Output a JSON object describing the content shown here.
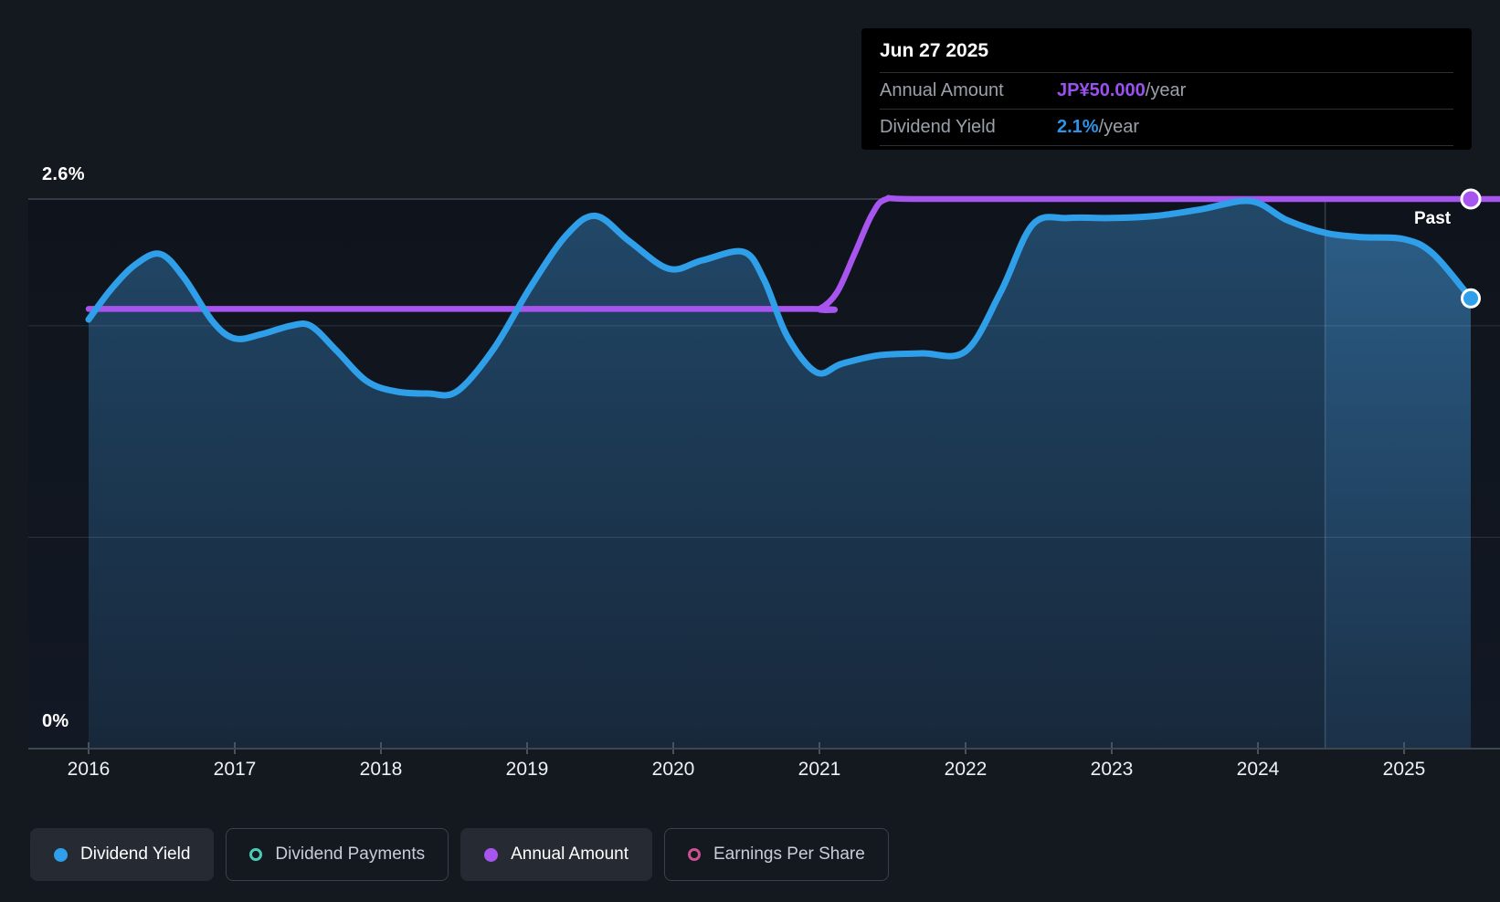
{
  "tooltip": {
    "date": "Jun 27 2025",
    "rows": [
      {
        "label": "Annual Amount",
        "value": "JP¥50.000",
        "suffix": "/year",
        "color": "#9b51f0"
      },
      {
        "label": "Dividend Yield",
        "value": "2.1%",
        "suffix": "/year",
        "color": "#2e93e8"
      }
    ]
  },
  "axes": {
    "y_top_label": "2.6%",
    "y_bottom_label": "0%",
    "x_years": [
      "2016",
      "2017",
      "2018",
      "2019",
      "2020",
      "2021",
      "2022",
      "2023",
      "2024",
      "2025"
    ]
  },
  "annotations": {
    "past_label": "Past"
  },
  "legend": {
    "items": [
      {
        "label": "Dividend Yield",
        "color": "#2e9fe8",
        "style": "filled",
        "active": true
      },
      {
        "label": "Dividend Payments",
        "color": "#4dcbb5",
        "style": "hollow",
        "active": false
      },
      {
        "label": "Annual Amount",
        "color": "#a855f0",
        "style": "filled",
        "active": true
      },
      {
        "label": "Earnings Per Share",
        "color": "#cc5190",
        "style": "hollow",
        "active": false
      }
    ]
  },
  "theme": {
    "background": "#14181f",
    "plot_background_top": "#0f141c",
    "plot_background_bottom": "#121824",
    "grid_major": "#404750",
    "grid_minor": "rgba(165,185,205,0.18)",
    "axis_line": "#3e4650",
    "tick": "#4a525b",
    "yield_line": "#2e9fe8",
    "amount_line": "#a855f0",
    "marker_ring": "#ffffff"
  },
  "chart_data": {
    "type": "area",
    "x_axis": {
      "tick_years": [
        2016,
        2017,
        2018,
        2019,
        2020,
        2021,
        2022,
        2023,
        2024,
        2025
      ],
      "range": [
        2016,
        2025.66
      ]
    },
    "y_axis": {
      "unit": "%",
      "range": [
        0,
        2.6
      ],
      "labeled_values": [
        2.6,
        0
      ],
      "gridline_values": [
        2.6,
        2.0,
        1.0,
        0
      ]
    },
    "annotations": {
      "past_label": "Past",
      "highlight_band_start_year": 2024.46,
      "today_year": 2025.456
    },
    "series": [
      {
        "name": "Dividend Yield",
        "unit": "%",
        "color": "#2e9fe8",
        "filled": true,
        "marker_year": 2025.456,
        "points": [
          [
            2016.0,
            2.03
          ],
          [
            2016.15,
            2.17
          ],
          [
            2016.32,
            2.29
          ],
          [
            2016.49,
            2.34
          ],
          [
            2016.65,
            2.23
          ],
          [
            2016.85,
            2.02
          ],
          [
            2017.0,
            1.94
          ],
          [
            2017.18,
            1.96
          ],
          [
            2017.38,
            2.0
          ],
          [
            2017.52,
            2.0
          ],
          [
            2017.7,
            1.88
          ],
          [
            2017.9,
            1.74
          ],
          [
            2018.1,
            1.69
          ],
          [
            2018.32,
            1.68
          ],
          [
            2018.52,
            1.69
          ],
          [
            2018.77,
            1.89
          ],
          [
            2019.02,
            2.18
          ],
          [
            2019.27,
            2.43
          ],
          [
            2019.47,
            2.52
          ],
          [
            2019.7,
            2.4
          ],
          [
            2019.97,
            2.27
          ],
          [
            2020.2,
            2.31
          ],
          [
            2020.48,
            2.35
          ],
          [
            2020.62,
            2.22
          ],
          [
            2020.78,
            1.95
          ],
          [
            2020.98,
            1.78
          ],
          [
            2021.15,
            1.82
          ],
          [
            2021.4,
            1.86
          ],
          [
            2021.7,
            1.87
          ],
          [
            2022.0,
            1.88
          ],
          [
            2022.24,
            2.16
          ],
          [
            2022.46,
            2.48
          ],
          [
            2022.7,
            2.51
          ],
          [
            2023.0,
            2.51
          ],
          [
            2023.3,
            2.52
          ],
          [
            2023.6,
            2.55
          ],
          [
            2023.95,
            2.59
          ],
          [
            2024.2,
            2.5
          ],
          [
            2024.46,
            2.44
          ],
          [
            2024.7,
            2.42
          ],
          [
            2025.0,
            2.41
          ],
          [
            2025.2,
            2.34
          ],
          [
            2025.456,
            2.13
          ]
        ]
      },
      {
        "name": "Annual Amount",
        "unit": "JP¥/year",
        "color": "#a855f0",
        "filled": false,
        "axis_max_mapped_to_top_gridline": 50,
        "marker_year": 2025.456,
        "points": [
          [
            2016.0,
            40
          ],
          [
            2018.5,
            40
          ],
          [
            2020.9,
            40
          ],
          [
            2021.0,
            40
          ],
          [
            2021.12,
            41.5
          ],
          [
            2021.24,
            45
          ],
          [
            2021.36,
            48.6
          ],
          [
            2021.46,
            50
          ],
          [
            2021.7,
            50
          ],
          [
            2023.5,
            50
          ],
          [
            2025.66,
            50
          ]
        ]
      }
    ]
  }
}
